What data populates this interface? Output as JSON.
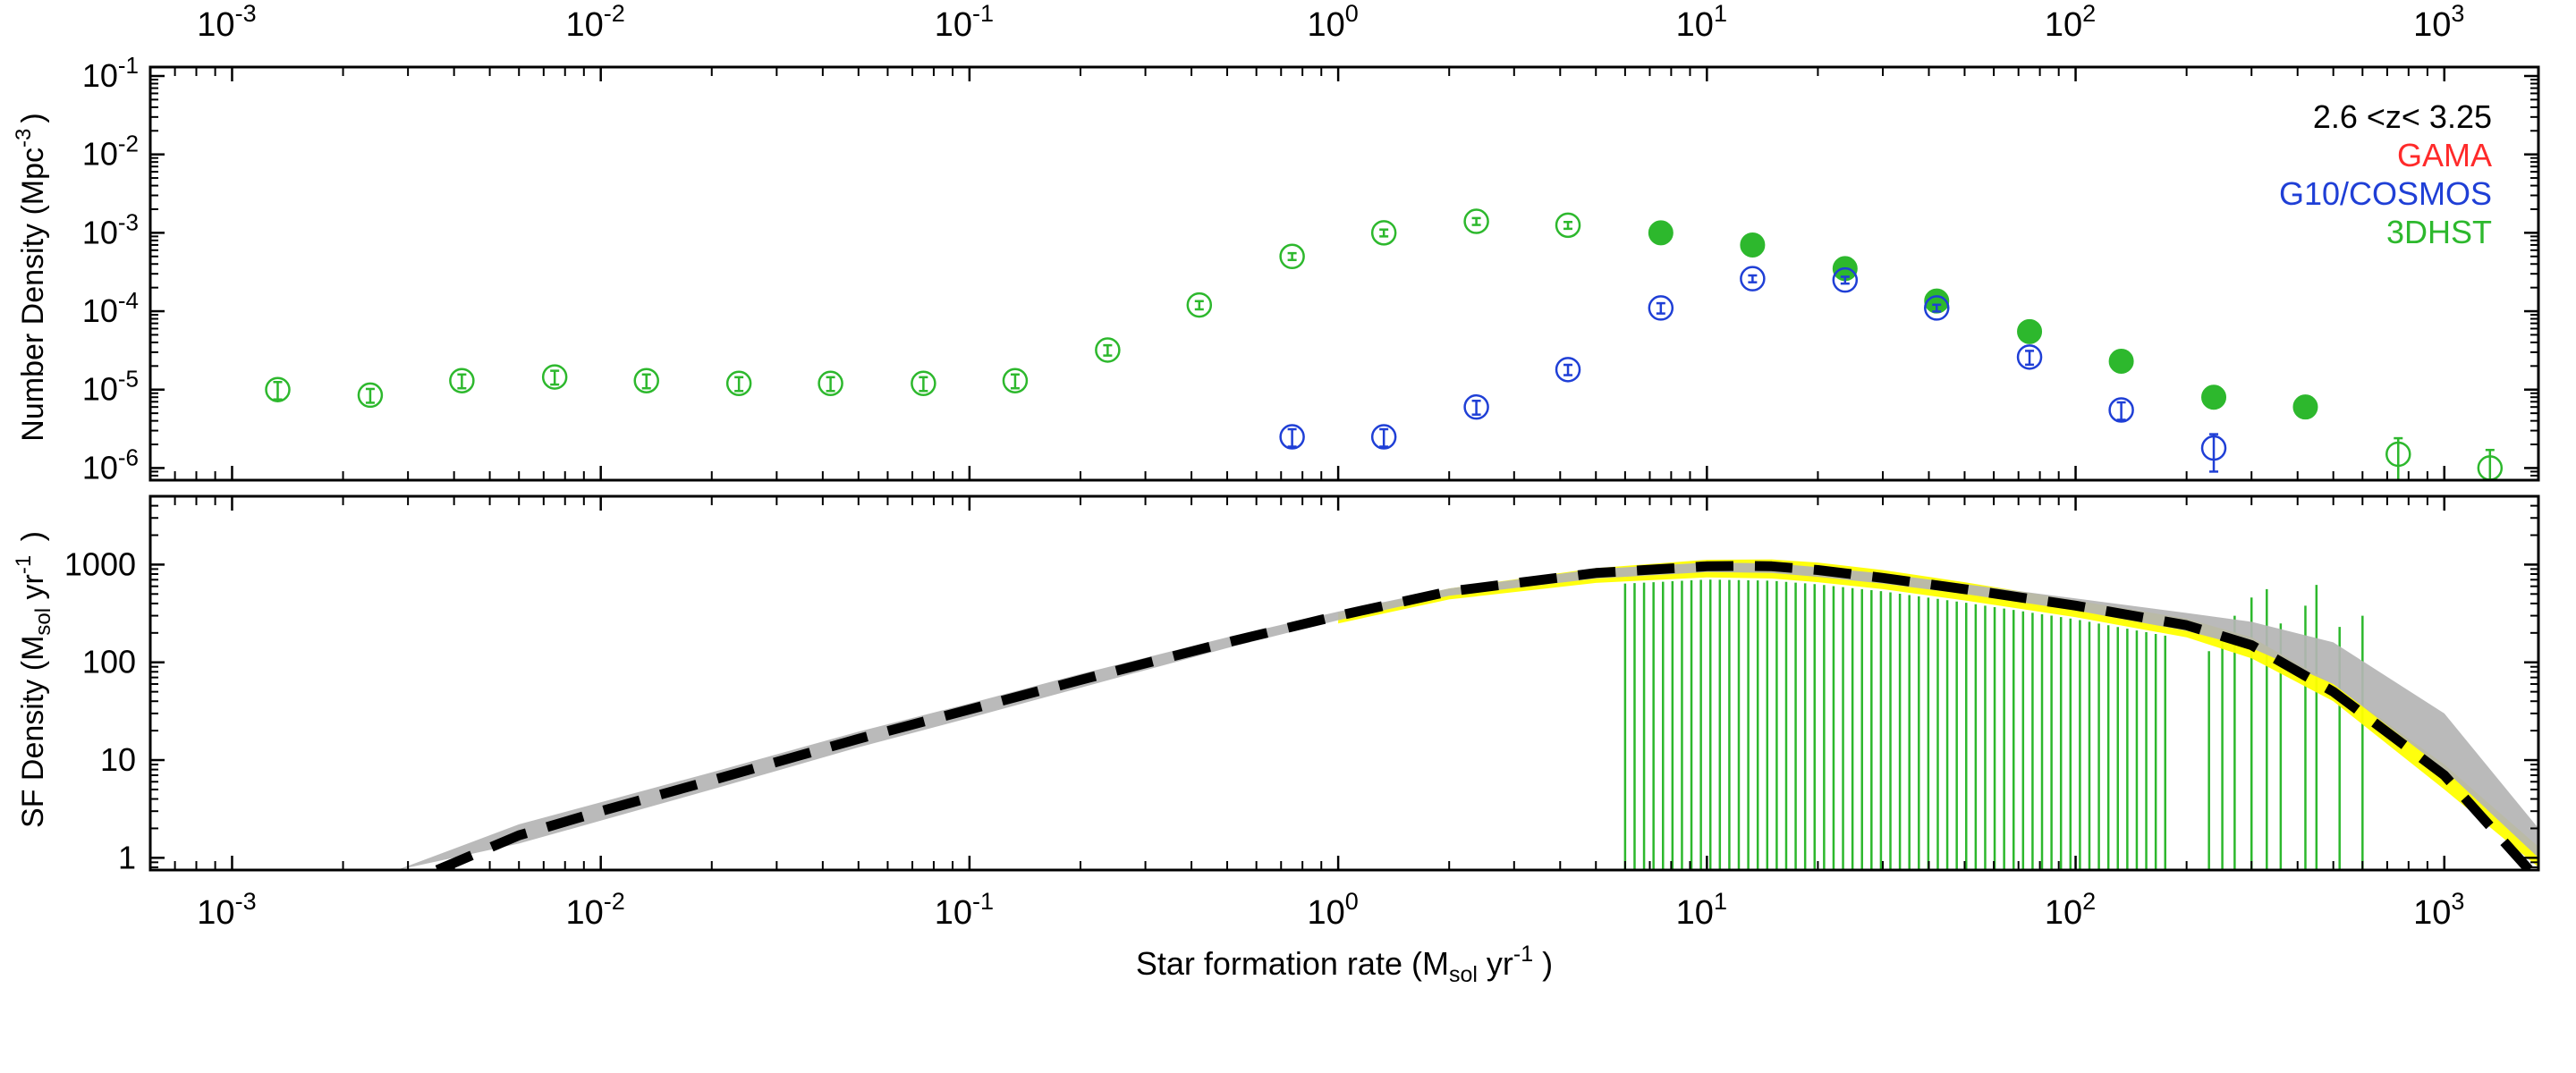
{
  "chart_data": [
    {
      "type": "scatter",
      "panel": "top",
      "ylabel": {
        "main": "Number Density (Mpc",
        "sup": "-3",
        "close": ")"
      },
      "x_scale": "log",
      "xlim": [
        0.0006,
        1800
      ],
      "y_scale": "log",
      "ylim": [
        7e-07,
        0.13
      ],
      "x_ticks": [
        0.001,
        0.01,
        0.1,
        1,
        10,
        100,
        1000
      ],
      "x_tick_labels": [
        {
          "base": "10",
          "exp": "-3"
        },
        {
          "base": "10",
          "exp": "-2"
        },
        {
          "base": "10",
          "exp": "-1"
        },
        {
          "base": "10",
          "exp": "0"
        },
        {
          "base": "10",
          "exp": "1"
        },
        {
          "base": "10",
          "exp": "2"
        },
        {
          "base": "10",
          "exp": "3"
        }
      ],
      "y_ticks": [
        1e-06,
        1e-05,
        0.0001,
        0.001,
        0.01,
        0.1
      ],
      "y_tick_labels": [
        {
          "base": "10",
          "exp": "-6"
        },
        {
          "base": "10",
          "exp": "-5"
        },
        {
          "base": "10",
          "exp": "-4"
        },
        {
          "base": "10",
          "exp": "-3"
        },
        {
          "base": "10",
          "exp": "-2"
        },
        {
          "base": "10",
          "exp": "-1"
        }
      ],
      "legend": {
        "position": "top-right",
        "entries": [
          {
            "label": "2.6 <z< 3.25",
            "color": "#000000"
          },
          {
            "label": "GAMA",
            "color": "#ff2a2a"
          },
          {
            "label": "G10/COSMOS",
            "color": "#1f3fd6"
          },
          {
            "label": "3DHST",
            "color": "#2db82d"
          }
        ]
      },
      "series": [
        {
          "name": "3DHST",
          "color": "#2db82d",
          "marker": "open-circle",
          "x": [
            0.00133,
            0.00237,
            0.0042,
            0.0075,
            0.0133,
            0.0237,
            0.042,
            0.075,
            0.133,
            0.237,
            0.42,
            0.75,
            1.33,
            2.37,
            4.2,
            750,
            1330
          ],
          "y": [
            1e-05,
            8.5e-06,
            1.3e-05,
            1.45e-05,
            1.3e-05,
            1.2e-05,
            1.2e-05,
            1.2e-05,
            1.3e-05,
            3.2e-05,
            0.00012,
            0.0005,
            0.001,
            0.0014,
            0.00125,
            1.5e-06,
            1e-06
          ],
          "yerr_frac": [
            0.25,
            0.2,
            0.2,
            0.2,
            0.2,
            0.2,
            0.2,
            0.2,
            0.2,
            0.15,
            0.12,
            0.1,
            0.1,
            0.1,
            0.1,
            0.6,
            0.7
          ]
        },
        {
          "name": "3DHST",
          "color": "#2db82d",
          "marker": "filled-circle",
          "x": [
            7.5,
            13.3,
            23.7,
            42,
            75,
            133,
            237,
            420
          ],
          "y": [
            0.001,
            0.0007,
            0.00035,
            0.000135,
            5.5e-05,
            2.3e-05,
            8e-06,
            6e-06
          ],
          "yerr_frac": [
            0.05,
            0.05,
            0.05,
            0.08,
            0.08,
            0.1,
            0.12,
            0.2
          ]
        },
        {
          "name": "G10/COSMOS",
          "color": "#1f3fd6",
          "marker": "open-circle",
          "x": [
            0.75,
            1.33,
            2.37,
            4.2,
            7.5,
            13.3,
            23.7,
            42,
            75,
            133,
            237
          ],
          "y": [
            2.5e-06,
            2.5e-06,
            6e-06,
            1.8e-05,
            0.00011,
            0.00026,
            0.00025,
            0.00011,
            2.6e-05,
            5.5e-06,
            1.8e-06
          ],
          "yerr_frac": [
            0.25,
            0.25,
            0.2,
            0.15,
            0.15,
            0.1,
            0.1,
            0.1,
            0.2,
            0.25,
            0.5
          ]
        }
      ]
    },
    {
      "type": "line",
      "panel": "bottom",
      "xlabel": {
        "pre": "Star formation rate (M",
        "sub": "sol",
        "mid": " yr",
        "sup": "-1",
        "post": " )"
      },
      "ylabel": {
        "pre": "SF Density (M",
        "sub": "sol",
        "mid": " yr",
        "sup": "-1",
        "post": " )"
      },
      "x_scale": "log",
      "xlim": [
        0.0006,
        1800
      ],
      "y_scale": "log",
      "ylim": [
        0.75,
        5000
      ],
      "y_ticks": [
        1,
        10,
        100,
        1000
      ],
      "y_tick_labels": [
        "1",
        "10",
        "100",
        "1000"
      ],
      "fit_curve": {
        "name": "best-fit",
        "color": "#000000",
        "style": "dashed",
        "x": [
          0.0036,
          0.006,
          0.01,
          0.02,
          0.05,
          0.1,
          0.2,
          0.5,
          1,
          2,
          5,
          10,
          13,
          15,
          20,
          30,
          50,
          100,
          200,
          300,
          500,
          1000,
          1700
        ],
        "y": [
          0.75,
          1.7,
          3.0,
          6.2,
          16.5,
          33,
          66,
          160,
          300,
          530,
          820,
          960,
          970,
          960,
          880,
          730,
          560,
          380,
          240,
          150,
          50,
          7,
          0.75
        ]
      },
      "uncertainty_band_gray": {
        "color": "#b4b4b4",
        "x": [
          0.0028,
          0.006,
          0.01,
          0.02,
          0.05,
          0.1,
          0.2,
          0.5,
          1,
          2,
          5,
          10,
          15,
          20,
          30,
          50,
          100,
          200,
          300,
          500,
          1000,
          1800
        ],
        "y_low": [
          0.75,
          1.4,
          2.4,
          5.0,
          13.5,
          27,
          55,
          140,
          270,
          480,
          720,
          840,
          820,
          750,
          640,
          500,
          340,
          210,
          140,
          60,
          8,
          1.0
        ],
        "y_high": [
          0.75,
          2.2,
          3.7,
          7.5,
          19.5,
          38,
          76,
          180,
          330,
          570,
          900,
          1050,
          1030,
          940,
          810,
          630,
          450,
          320,
          260,
          160,
          30,
          2.0
        ]
      },
      "uncertainty_band_yellow": {
        "color": "#ffff00",
        "x": [
          1,
          2,
          5,
          10,
          15,
          20,
          30,
          50,
          100,
          200,
          300,
          500,
          1000,
          1800
        ],
        "y_low": [
          250,
          440,
          650,
          740,
          720,
          660,
          560,
          430,
          290,
          180,
          110,
          40,
          5,
          0.8
        ],
        "y_high": [
          320,
          570,
          920,
          1120,
          1130,
          1050,
          880,
          660,
          430,
          280,
          180,
          60,
          9,
          1.3
        ]
      },
      "bins": {
        "color": "#2db82d",
        "x_min": 6.0,
        "x_max": 175,
        "n": 58,
        "bottom_y": 0.75
      },
      "outlier_bins": {
        "color": "#2db82d",
        "x": [
          230,
          250,
          270,
          300,
          330,
          360,
          420,
          450,
          520,
          600
        ],
        "top_y": [
          130,
          200,
          300,
          460,
          560,
          250,
          380,
          620,
          230,
          300
        ],
        "bottom_y": [
          0.75,
          0.75,
          0.75,
          0.75,
          0.75,
          0.75,
          0.75,
          0.75,
          0.75,
          0.75
        ]
      },
      "x_tick_labels": [
        {
          "base": "10",
          "exp": "-3"
        },
        {
          "base": "10",
          "exp": "-2"
        },
        {
          "base": "10",
          "exp": "-1"
        },
        {
          "base": "10",
          "exp": "0"
        },
        {
          "base": "10",
          "exp": "1"
        },
        {
          "base": "10",
          "exp": "2"
        },
        {
          "base": "10",
          "exp": "3"
        }
      ]
    }
  ]
}
